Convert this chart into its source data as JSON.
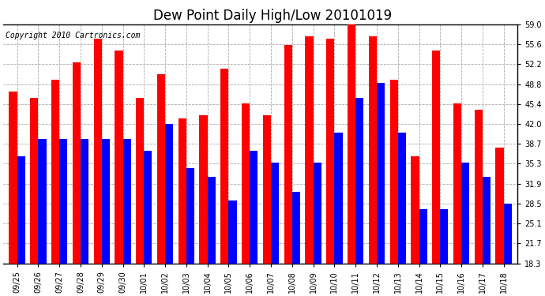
{
  "title": "Dew Point Daily High/Low 20101019",
  "copyright": "Copyright 2010 Cartronics.com",
  "dates": [
    "09/25",
    "09/26",
    "09/27",
    "09/28",
    "09/29",
    "09/30",
    "10/01",
    "10/02",
    "10/03",
    "10/04",
    "10/05",
    "10/06",
    "10/07",
    "10/08",
    "10/09",
    "10/10",
    "10/11",
    "10/12",
    "10/13",
    "10/14",
    "10/15",
    "10/16",
    "10/17",
    "10/18"
  ],
  "highs": [
    47.5,
    46.5,
    49.5,
    52.5,
    56.5,
    54.5,
    46.5,
    50.5,
    43.0,
    43.5,
    51.5,
    45.5,
    43.5,
    55.5,
    57.0,
    56.5,
    59.5,
    57.0,
    49.5,
    36.5,
    54.5,
    45.5,
    44.5,
    38.0
  ],
  "lows": [
    36.5,
    39.5,
    39.5,
    39.5,
    39.5,
    39.5,
    37.5,
    42.0,
    34.5,
    33.0,
    29.0,
    37.5,
    35.5,
    30.5,
    35.5,
    40.5,
    46.5,
    49.0,
    40.5,
    27.5,
    27.5,
    35.5,
    33.0,
    28.5
  ],
  "high_color": "#ff0000",
  "low_color": "#0000ff",
  "bg_color": "#ffffff",
  "grid_color": "#aaaaaa",
  "ylim_min": 18.3,
  "ylim_max": 59.0,
  "yticks": [
    18.3,
    21.7,
    25.1,
    28.5,
    31.9,
    35.3,
    38.7,
    42.0,
    45.4,
    48.8,
    52.2,
    55.6,
    59.0
  ],
  "title_fontsize": 12,
  "tick_fontsize": 7,
  "copyright_fontsize": 7
}
